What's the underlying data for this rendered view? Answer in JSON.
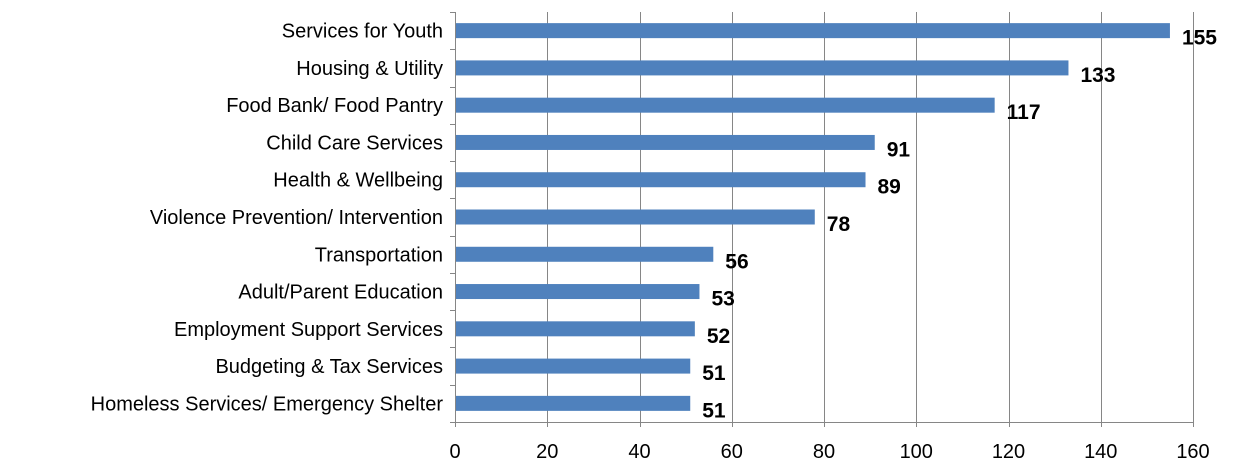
{
  "chart_data": {
    "type": "bar",
    "orientation": "horizontal",
    "categories": [
      "Services for Youth",
      "Housing & Utility",
      "Food Bank/ Food Pantry",
      "Child Care Services",
      "Health & Wellbeing",
      "Violence Prevention/ Intervention",
      "Transportation",
      "Adult/Parent Education",
      "Employment Support Services",
      "Budgeting & Tax Services",
      "Homeless Services/ Emergency Shelter"
    ],
    "values": [
      155,
      133,
      117,
      91,
      89,
      78,
      56,
      53,
      52,
      51,
      51
    ],
    "data_labels": [
      "155",
      "133",
      "117",
      "91",
      "89",
      "78",
      "56",
      "53",
      "52",
      "51",
      "51"
    ],
    "xlim": [
      0,
      160
    ],
    "xticks": [
      0,
      20,
      40,
      60,
      80,
      100,
      120,
      140,
      160
    ],
    "xtick_labels": [
      "0",
      "20",
      "40",
      "60",
      "80",
      "100",
      "120",
      "140",
      "160"
    ],
    "title": "",
    "xlabel": "",
    "ylabel": "",
    "grid": "vertical",
    "bar_color": "#4f81bd",
    "grid_color": "#868686"
  }
}
